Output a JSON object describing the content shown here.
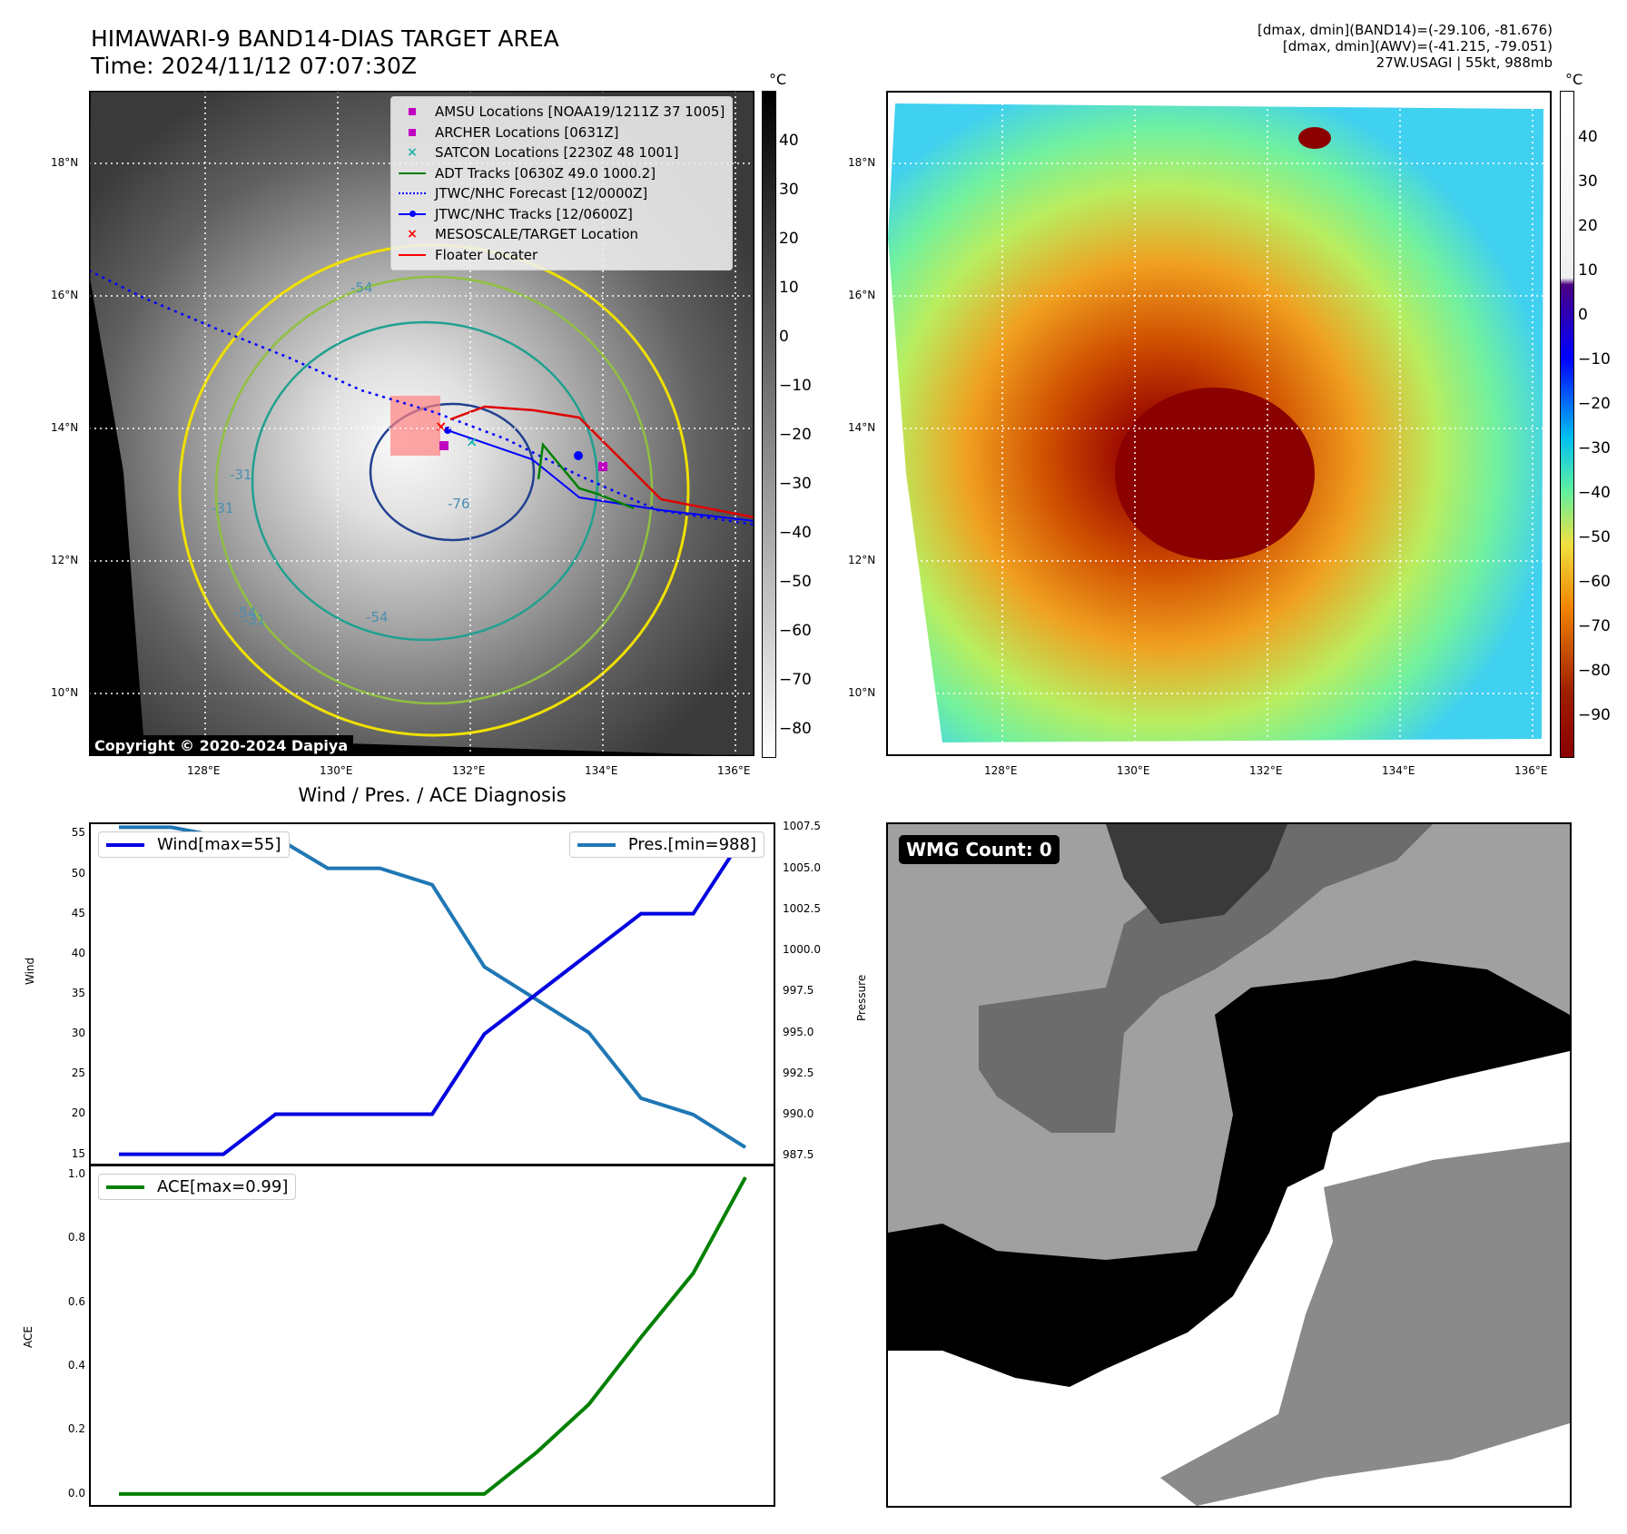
{
  "header": {
    "title_line1": "HIMAWARI-9 BAND14-DIAS TARGET AREA",
    "title_line2": "Time: 2024/11/12 07:07:30Z",
    "right_line1": "[dmax, dmin](BAND14)=(-29.106, -81.676)",
    "right_line2": "[dmax, dmin](AWV)=(-41.215, -79.051)",
    "right_line3": "27W.USAGI | 55kt, 988mb"
  },
  "map_axes": {
    "lon_labels": [
      "128°E",
      "130°E",
      "132°E",
      "134°E",
      "136°E"
    ],
    "lat_labels": [
      "18°N",
      "16°N",
      "14°N",
      "12°N",
      "10°N"
    ]
  },
  "ir_panel": {
    "legend": [
      {
        "label": "AMSU Locations [NOAA19/1211Z 37 1005]",
        "marker": "square",
        "color": "#c000c0"
      },
      {
        "label": "ARCHER Locations [0631Z]",
        "marker": "square",
        "color": "#c000c0"
      },
      {
        "label": "SATCON Locations [2230Z 48 1001]",
        "marker": "x",
        "color": "#20b2aa"
      },
      {
        "label": "ADT Tracks [0630Z 49.0 1000.2]",
        "marker": "line",
        "color": "#008000"
      },
      {
        "label": "JTWC/NHC Forecast [12/0000Z]",
        "marker": "dotted",
        "color": "#0000ff"
      },
      {
        "label": "JTWC/NHC Tracks [12/0600Z]",
        "marker": "line-dot",
        "color": "#0000ff"
      },
      {
        "label": "MESOSCALE/TARGET Location",
        "marker": "x",
        "color": "#ff0000"
      },
      {
        "label": "Floater Locater",
        "marker": "line",
        "color": "#ff0000"
      }
    ],
    "contour_labels": [
      "-54",
      "-31",
      "-76",
      "-31",
      "-54",
      "-31",
      "-54"
    ],
    "copyright": "Copyright © 2020-2024 Dapiya",
    "colorbar_unit": "°C",
    "colorbar_ticks": [
      "40",
      "30",
      "20",
      "10",
      "0",
      "−10",
      "−20",
      "−30",
      "−40",
      "−50",
      "−60",
      "−70",
      "−80"
    ]
  },
  "awv_panel": {
    "colorbar_unit": "°C",
    "colorbar_ticks": [
      "40",
      "30",
      "20",
      "10",
      "0",
      "−10",
      "−20",
      "−30",
      "−40",
      "−50",
      "−60",
      "−70",
      "−80",
      "−90"
    ]
  },
  "diagnosis": {
    "title": "Wind / Pres. / ACE Diagnosis",
    "wind_label": "Wind",
    "pressure_label": "Pressure",
    "ace_label": "ACE",
    "wind_legend": "Wind[max=55]",
    "pres_legend": "Pres.[min=988]",
    "ace_legend": "ACE[max=0.99]",
    "wind_ticks": [
      "15",
      "20",
      "25",
      "30",
      "35",
      "40",
      "45",
      "50",
      "55"
    ],
    "pres_ticks": [
      "987.5",
      "990.0",
      "992.5",
      "995.0",
      "997.5",
      "1000.0",
      "1002.5",
      "1005.0",
      "1007.5"
    ],
    "ace_ticks": [
      "0.0",
      "0.2",
      "0.4",
      "0.6",
      "0.8",
      "1.0"
    ]
  },
  "wmg": {
    "label": "WMG Count: 0"
  },
  "chart_data": [
    {
      "type": "line",
      "name": "wind",
      "x": [
        0,
        1,
        2,
        3,
        4,
        5,
        6,
        7,
        8,
        9,
        10,
        11,
        12
      ],
      "series": [
        {
          "name": "Wind[max=55]",
          "values": [
            15,
            15,
            15,
            20,
            20,
            20,
            20,
            30,
            35,
            40,
            45,
            45,
            55
          ],
          "color": "#0000e0"
        }
      ],
      "ylabel": "Wind",
      "ylim": [
        13.6,
        56.4
      ]
    },
    {
      "type": "line",
      "name": "pressure",
      "x": [
        0,
        1,
        2,
        3,
        4,
        5,
        6,
        7,
        8,
        9,
        10,
        11,
        12
      ],
      "series": [
        {
          "name": "Pres.[min=988]",
          "values": [
            1007.5,
            1007.5,
            1006.9,
            1006.9,
            1005.0,
            1005.0,
            1004.0,
            999.0,
            997.0,
            995.0,
            991.0,
            990.0,
            988.0
          ],
          "color": "#1f77b4"
        }
      ],
      "ylabel": "Pressure",
      "ylim": [
        986.9,
        1007.8
      ]
    },
    {
      "type": "line",
      "name": "ace",
      "x": [
        0,
        1,
        2,
        3,
        4,
        5,
        6,
        7,
        8,
        9,
        10,
        11,
        12
      ],
      "series": [
        {
          "name": "ACE[max=0.99]",
          "values": [
            0,
            0,
            0,
            0,
            0,
            0,
            0,
            0,
            0.13,
            0.28,
            0.49,
            0.69,
            0.99
          ],
          "color": "#008000"
        }
      ],
      "ylabel": "ACE",
      "ylim": [
        -0.04,
        1.03
      ]
    }
  ]
}
